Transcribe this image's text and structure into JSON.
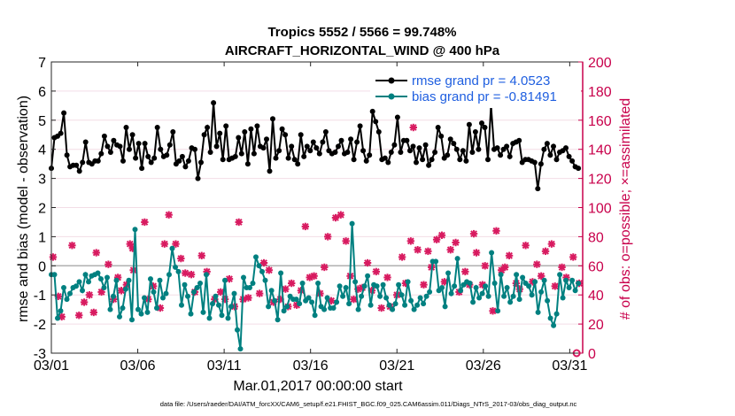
{
  "chart_data": {
    "type": "line",
    "title_line1": "Tropics 5552 / 5566 = 99.748%",
    "title_line2": "AIRCRAFT_HORIZONTAL_WIND @ 400 hPa",
    "xlabel": "Mar.01,2017 00:00:00 start",
    "ylabel_left": "rmse and bias (model - observation)",
    "ylabel_right": "# of obs: o=possible; ×=assimilated",
    "footnote": "data file: /Users/raeder/DAI/ATM_forcXX/CAM6_setup/f.e21.FHIST_BGC.f09_025.CAM6assim.011/Diags_NTrS_2017-03/obs_diag_output.nc",
    "x_ticks": [
      "03/01",
      "03/06",
      "03/11",
      "03/16",
      "03/21",
      "03/26",
      "03/31"
    ],
    "x_tick_days": [
      1,
      6,
      11,
      16,
      21,
      26,
      31
    ],
    "xlim": [
      1,
      31.75
    ],
    "ylim_left": [
      -3,
      7
    ],
    "y_ticks_left": [
      "-3",
      "-2",
      "-1",
      "0",
      "1",
      "2",
      "3",
      "4",
      "5",
      "6",
      "7"
    ],
    "ylim_right": [
      0,
      200
    ],
    "y_ticks_right": [
      "0",
      "20",
      "40",
      "60",
      "80",
      "100",
      "120",
      "140",
      "160",
      "180",
      "200"
    ],
    "colors": {
      "rmse": "#000000",
      "bias": "#008080",
      "counts": "#d81b60",
      "right_axis": "#c8004b",
      "legend_text": "#1f5fe0",
      "zero_line": "#b0b0b0"
    },
    "series": [
      {
        "name": "rmse grand pr = 4.0523",
        "axis": "left",
        "values": [
          3.35,
          4.4,
          4.45,
          4.55,
          5.25,
          3.8,
          3.4,
          3.45,
          3.45,
          3.25,
          3.55,
          4.25,
          3.55,
          3.5,
          3.6,
          3.6,
          3.85,
          4.45,
          4.1,
          3.9,
          4.3,
          4.15,
          4.1,
          3.6,
          4.75,
          4.0,
          4.5,
          3.7,
          4.2,
          3.35,
          4.2,
          3.75,
          3.55,
          3.7,
          4.75,
          4.0,
          3.75,
          3.8,
          4.15,
          4.6,
          3.5,
          3.6,
          3.75,
          3.4,
          3.6,
          4.05,
          4.0,
          3.0,
          3.55,
          4.5,
          4.75,
          3.9,
          5.6,
          4.1,
          4.55,
          3.65,
          4.8,
          3.65,
          3.7,
          3.75,
          4.4,
          3.85,
          4.6,
          3.5,
          4.7,
          3.85,
          4.8,
          4.1,
          4.05,
          4.35,
          3.25,
          5.05,
          3.7,
          3.95,
          4.7,
          4.5,
          3.7,
          4.1,
          3.65,
          3.5,
          4.5,
          3.75,
          4.1,
          3.95,
          4.25,
          4.05,
          3.85,
          4.25,
          4.6,
          3.95,
          3.85,
          3.9,
          4.1,
          4.3,
          3.85,
          3.9,
          4.35,
          3.65,
          4.25,
          4.8,
          3.95,
          3.6,
          3.8,
          5.3,
          4.95,
          4.6,
          3.65,
          3.7,
          3.55,
          3.9,
          4.15,
          5.1,
          3.9,
          4.3,
          4.3,
          3.95,
          4.1,
          3.55,
          4.05,
          3.65,
          4.15,
          3.45,
          3.65,
          3.9,
          4.75,
          4.45,
          3.7,
          3.8,
          4.35,
          4.2,
          4.0,
          3.65,
          3.95,
          3.6,
          4.85,
          3.9,
          4.6,
          4.0,
          4.9,
          4.75,
          3.65,
          5.5,
          4.0,
          4.05,
          3.8,
          4.0,
          4.1,
          3.75,
          4.2,
          4.25,
          4.3,
          3.55,
          3.65,
          3.65,
          3.6,
          3.55,
          2.65,
          3.5,
          4.0,
          4.2,
          3.8,
          4.1,
          3.65,
          3.9,
          3.95,
          4.05,
          3.75,
          3.6,
          3.4,
          3.35
        ]
      },
      {
        "name": "bias grand pr = -0.81491",
        "axis": "left",
        "values": [
          -0.3,
          -0.3,
          -1.8,
          -1.55,
          -0.75,
          -1.15,
          -0.95,
          -0.75,
          -0.7,
          -0.55,
          -0.85,
          -0.3,
          -0.55,
          -0.35,
          -0.3,
          -0.25,
          -0.45,
          -0.75,
          -0.4,
          -1.5,
          -1.05,
          -0.5,
          -1.75,
          -1.45,
          -0.8,
          -0.5,
          -1.85,
          1.25,
          -1.5,
          -1.65,
          -1.1,
          -1.6,
          -0.45,
          -0.9,
          -1.45,
          -0.5,
          -1.1,
          -0.95,
          -0.3,
          0.6,
          -0.05,
          -0.2,
          -1.35,
          -0.65,
          -1.05,
          -1.65,
          -0.9,
          -0.75,
          -0.6,
          -1.6,
          -0.3,
          -1.8,
          -1.3,
          -1.05,
          -1.35,
          -1.7,
          -0.5,
          -1.8,
          -1.4,
          -0.95,
          -2.2,
          -2.85,
          -0.4,
          -0.75,
          -0.75,
          -0.6,
          0.3,
          0.0,
          -0.2,
          -0.5,
          -1.4,
          -0.85,
          -1.2,
          -1.85,
          -0.25,
          -1.55,
          -1.4,
          -1.05,
          -1.15,
          -1.15,
          -1.3,
          -0.6,
          -1.2,
          -1.1,
          -1.25,
          -1.7,
          -0.6,
          -1.4,
          -1.5,
          -1.1,
          -1.45,
          -1.45,
          -1.25,
          -0.7,
          -1.05,
          -0.75,
          -1.3,
          1.45,
          -0.55,
          -1.5,
          -1.05,
          -0.7,
          -0.35,
          -1.35,
          -0.65,
          -0.7,
          -1.05,
          -0.65,
          -1.1,
          -1.35,
          -1.5,
          -1.3,
          -0.65,
          -1.0,
          -1.35,
          -0.55,
          -1.2,
          -1.5,
          -1.35,
          -1.1,
          -1.3,
          -1.05,
          -0.9,
          0.15,
          0.15,
          -0.85,
          -0.75,
          -1.4,
          -0.25,
          -0.95,
          -0.7,
          0.25,
          -0.85,
          -0.65,
          -0.55,
          -0.6,
          -1.25,
          -0.75,
          -1.1,
          -0.95,
          -0.7,
          -1.05,
          0.45,
          -0.6,
          -1.55,
          -0.3,
          -1.05,
          -0.75,
          -1.25,
          -1.05,
          -0.3,
          -1.15,
          -0.4,
          -0.6,
          -0.7,
          -1.0,
          -0.55,
          -1.6,
          -0.9,
          -0.5,
          -1.2,
          -1.8,
          -2.05,
          -1.65,
          -0.3,
          -1.1,
          -0.5,
          -0.75,
          -0.5,
          -0.85,
          -0.6
        ]
      },
      {
        "name": "obs assimilated (x)",
        "axis": "right",
        "points": [
          [
            1.1,
            66
          ],
          [
            1.4,
            39
          ],
          [
            1.6,
            25
          ],
          [
            2.2,
            74
          ],
          [
            2.6,
            26
          ],
          [
            2.9,
            35
          ],
          [
            3.2,
            40
          ],
          [
            3.45,
            28
          ],
          [
            3.6,
            69
          ],
          [
            3.9,
            42
          ],
          [
            4.3,
            61
          ],
          [
            4.6,
            37
          ],
          [
            4.85,
            52
          ],
          [
            5.05,
            43
          ],
          [
            5.35,
            47
          ],
          [
            5.55,
            75
          ],
          [
            5.7,
            72
          ],
          [
            5.75,
            57
          ],
          [
            6.4,
            90
          ],
          [
            6.6,
            37
          ],
          [
            6.9,
            46
          ],
          [
            7.3,
            31
          ],
          [
            7.55,
            75
          ],
          [
            7.8,
            95
          ],
          [
            8.2,
            75
          ],
          [
            8.5,
            65
          ],
          [
            8.75,
            55
          ],
          [
            9.1,
            54
          ],
          [
            9.3,
            42
          ],
          [
            9.7,
            67
          ],
          [
            10.0,
            56
          ],
          [
            10.45,
            37
          ],
          [
            10.8,
            42
          ],
          [
            11.05,
            37
          ],
          [
            11.3,
            51
          ],
          [
            11.6,
            32
          ],
          [
            11.85,
            90
          ],
          [
            12.1,
            37
          ],
          [
            12.4,
            38
          ],
          [
            13.05,
            41
          ],
          [
            13.3,
            62
          ],
          [
            13.6,
            57
          ],
          [
            13.85,
            35
          ],
          [
            14.25,
            37
          ],
          [
            14.55,
            44
          ],
          [
            14.7,
            32
          ],
          [
            14.9,
            48
          ],
          [
            15.2,
            33
          ],
          [
            15.45,
            43
          ],
          [
            15.7,
            87
          ],
          [
            15.95,
            52
          ],
          [
            16.2,
            53
          ],
          [
            16.55,
            41
          ],
          [
            16.8,
            59
          ],
          [
            17.0,
            80
          ],
          [
            17.2,
            36
          ],
          [
            17.45,
            93
          ],
          [
            17.75,
            95
          ],
          [
            18.05,
            77
          ],
          [
            18.3,
            53
          ],
          [
            18.5,
            37
          ],
          [
            18.75,
            44
          ],
          [
            19.0,
            45
          ],
          [
            19.3,
            62
          ],
          [
            19.55,
            43
          ],
          [
            19.8,
            56
          ],
          [
            20.1,
            31
          ],
          [
            20.45,
            52
          ],
          [
            20.6,
            32
          ],
          [
            21.0,
            40
          ],
          [
            21.3,
            66
          ],
          [
            21.5,
            48
          ],
          [
            21.8,
            77
          ],
          [
            21.95,
            155
          ],
          [
            22.2,
            71
          ],
          [
            22.55,
            47
          ],
          [
            22.8,
            70
          ],
          [
            23.0,
            59
          ],
          [
            23.3,
            78
          ],
          [
            23.6,
            81
          ],
          [
            23.75,
            49
          ],
          [
            24.1,
            71
          ],
          [
            24.4,
            76
          ],
          [
            24.6,
            42
          ],
          [
            24.95,
            56
          ],
          [
            25.2,
            47
          ],
          [
            25.45,
            82
          ],
          [
            25.6,
            69
          ],
          [
            25.95,
            47
          ],
          [
            26.1,
            60
          ],
          [
            26.55,
            29
          ],
          [
            26.75,
            84
          ],
          [
            27.05,
            57
          ],
          [
            27.25,
            59
          ],
          [
            27.5,
            67
          ],
          [
            27.9,
            48
          ],
          [
            28.1,
            44
          ],
          [
            28.45,
            74
          ],
          [
            28.85,
            49
          ],
          [
            29.1,
            61
          ],
          [
            29.35,
            53
          ],
          [
            29.6,
            70
          ],
          [
            29.95,
            75
          ],
          [
            30.15,
            46
          ],
          [
            30.55,
            59
          ],
          [
            30.8,
            52
          ],
          [
            31.2,
            66
          ],
          [
            31.55,
            48
          ]
        ]
      },
      {
        "name": "obs possible (o)",
        "axis": "right",
        "points": [
          [
            31.4,
            0
          ]
        ]
      }
    ],
    "legend": [
      "rmse grand pr = 4.0523",
      "bias grand pr = -0.81491"
    ]
  }
}
